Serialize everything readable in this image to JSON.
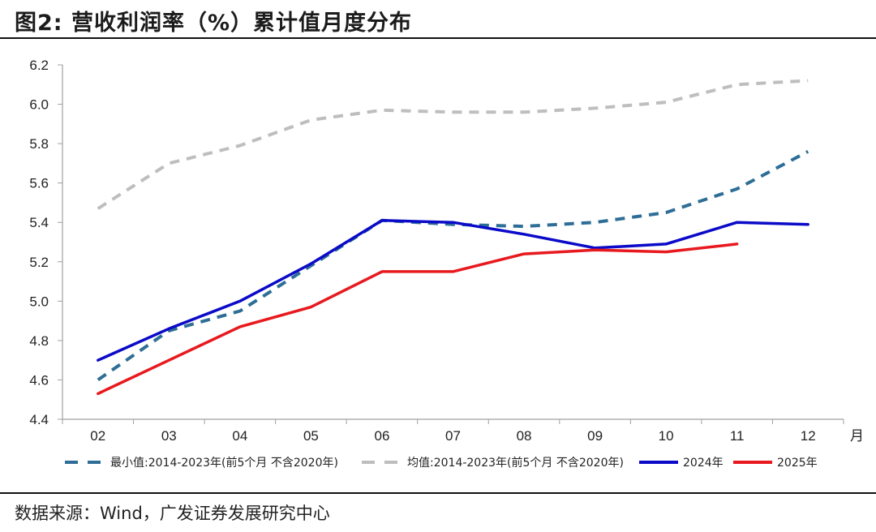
{
  "header": {
    "title": "图2:  营收利润率（%）累计值月度分布"
  },
  "footer": {
    "source": "数据来源：Wind，广发证券发展研究中心"
  },
  "chart_data": {
    "type": "line",
    "title": "图2: 营收利润率（%）累计值月度分布",
    "xlabel": "月",
    "ylabel": "",
    "categories": [
      "02",
      "03",
      "04",
      "05",
      "06",
      "07",
      "08",
      "09",
      "10",
      "11",
      "12"
    ],
    "ylim": [
      4.4,
      6.2
    ],
    "yticks": [
      "4.4",
      "4.6",
      "4.8",
      "5.0",
      "5.2",
      "5.4",
      "5.6",
      "5.8",
      "6.0",
      "6.2"
    ],
    "grid": false,
    "legend_position": "bottom",
    "series": [
      {
        "name": "最小值:2014-2023年(前5个月 不含2020年)",
        "style": "dashed",
        "color": "#2E6E96",
        "values": [
          4.6,
          4.85,
          4.95,
          5.18,
          5.41,
          5.39,
          5.38,
          5.4,
          5.45,
          5.57,
          5.76
        ]
      },
      {
        "name": "均值:2014-2023年(前5个月 不含2020年)",
        "style": "dashed",
        "color": "#BEBEBE",
        "values": [
          5.47,
          5.7,
          5.79,
          5.92,
          5.97,
          5.96,
          5.96,
          5.98,
          6.01,
          6.1,
          6.12
        ]
      },
      {
        "name": "2024年",
        "style": "solid",
        "color": "#0A0AC8",
        "values": [
          4.7,
          4.86,
          5.0,
          5.19,
          5.41,
          5.4,
          5.34,
          5.27,
          5.29,
          5.4,
          5.39
        ]
      },
      {
        "name": "2025年",
        "style": "solid",
        "color": "#E8191E",
        "values": [
          4.53,
          4.7,
          4.87,
          4.97,
          5.15,
          5.15,
          5.24,
          5.26,
          5.25,
          5.29,
          null
        ]
      }
    ]
  }
}
